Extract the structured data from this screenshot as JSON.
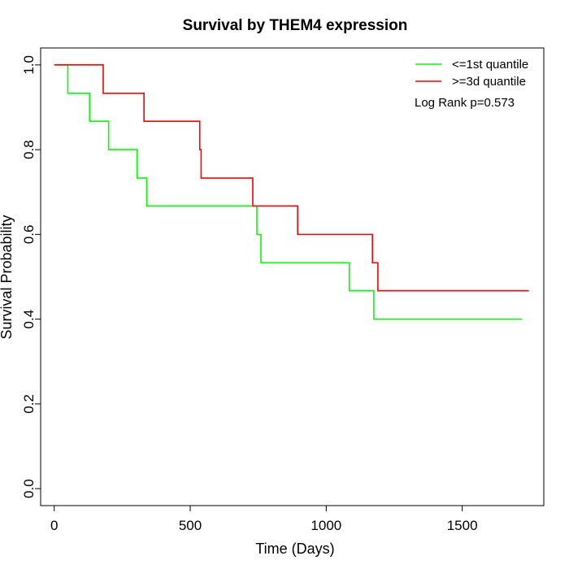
{
  "chart_data": {
    "type": "line",
    "title": "Survival by THEM4 expression",
    "xlabel": "Time (Days)",
    "ylabel": "Survival Probability",
    "xlim": [
      -50,
      1800
    ],
    "ylim": [
      -0.04,
      1.04
    ],
    "x_ticks": [
      0,
      500,
      1000,
      1500
    ],
    "x_tick_labels": [
      "0",
      "500",
      "1000",
      "1500"
    ],
    "y_ticks": [
      0.0,
      0.2,
      0.4,
      0.6,
      0.8,
      1.0
    ],
    "y_tick_labels": [
      "0.0",
      "0.2",
      "0.4",
      "0.6",
      "0.8",
      "1.0"
    ],
    "grid": false,
    "legend_position": "top-right",
    "annotation": "Log Rank p=0.573",
    "series": [
      {
        "name": "<=1st quantile",
        "color": "#00ff00",
        "step": true,
        "x": [
          0,
          50,
          130,
          200,
          305,
          340,
          745,
          760,
          1085,
          1175,
          1720
        ],
        "y": [
          1.0,
          0.933,
          0.867,
          0.8,
          0.733,
          0.667,
          0.6,
          0.533,
          0.467,
          0.4,
          0.4
        ]
      },
      {
        "name": ">=3d quantile",
        "color": "#ff0000",
        "step": true,
        "x": [
          0,
          180,
          330,
          535,
          540,
          730,
          895,
          1170,
          1190,
          1745
        ],
        "y": [
          1.0,
          0.933,
          0.867,
          0.8,
          0.733,
          0.667,
          0.6,
          0.533,
          0.467,
          0.467
        ]
      }
    ]
  }
}
